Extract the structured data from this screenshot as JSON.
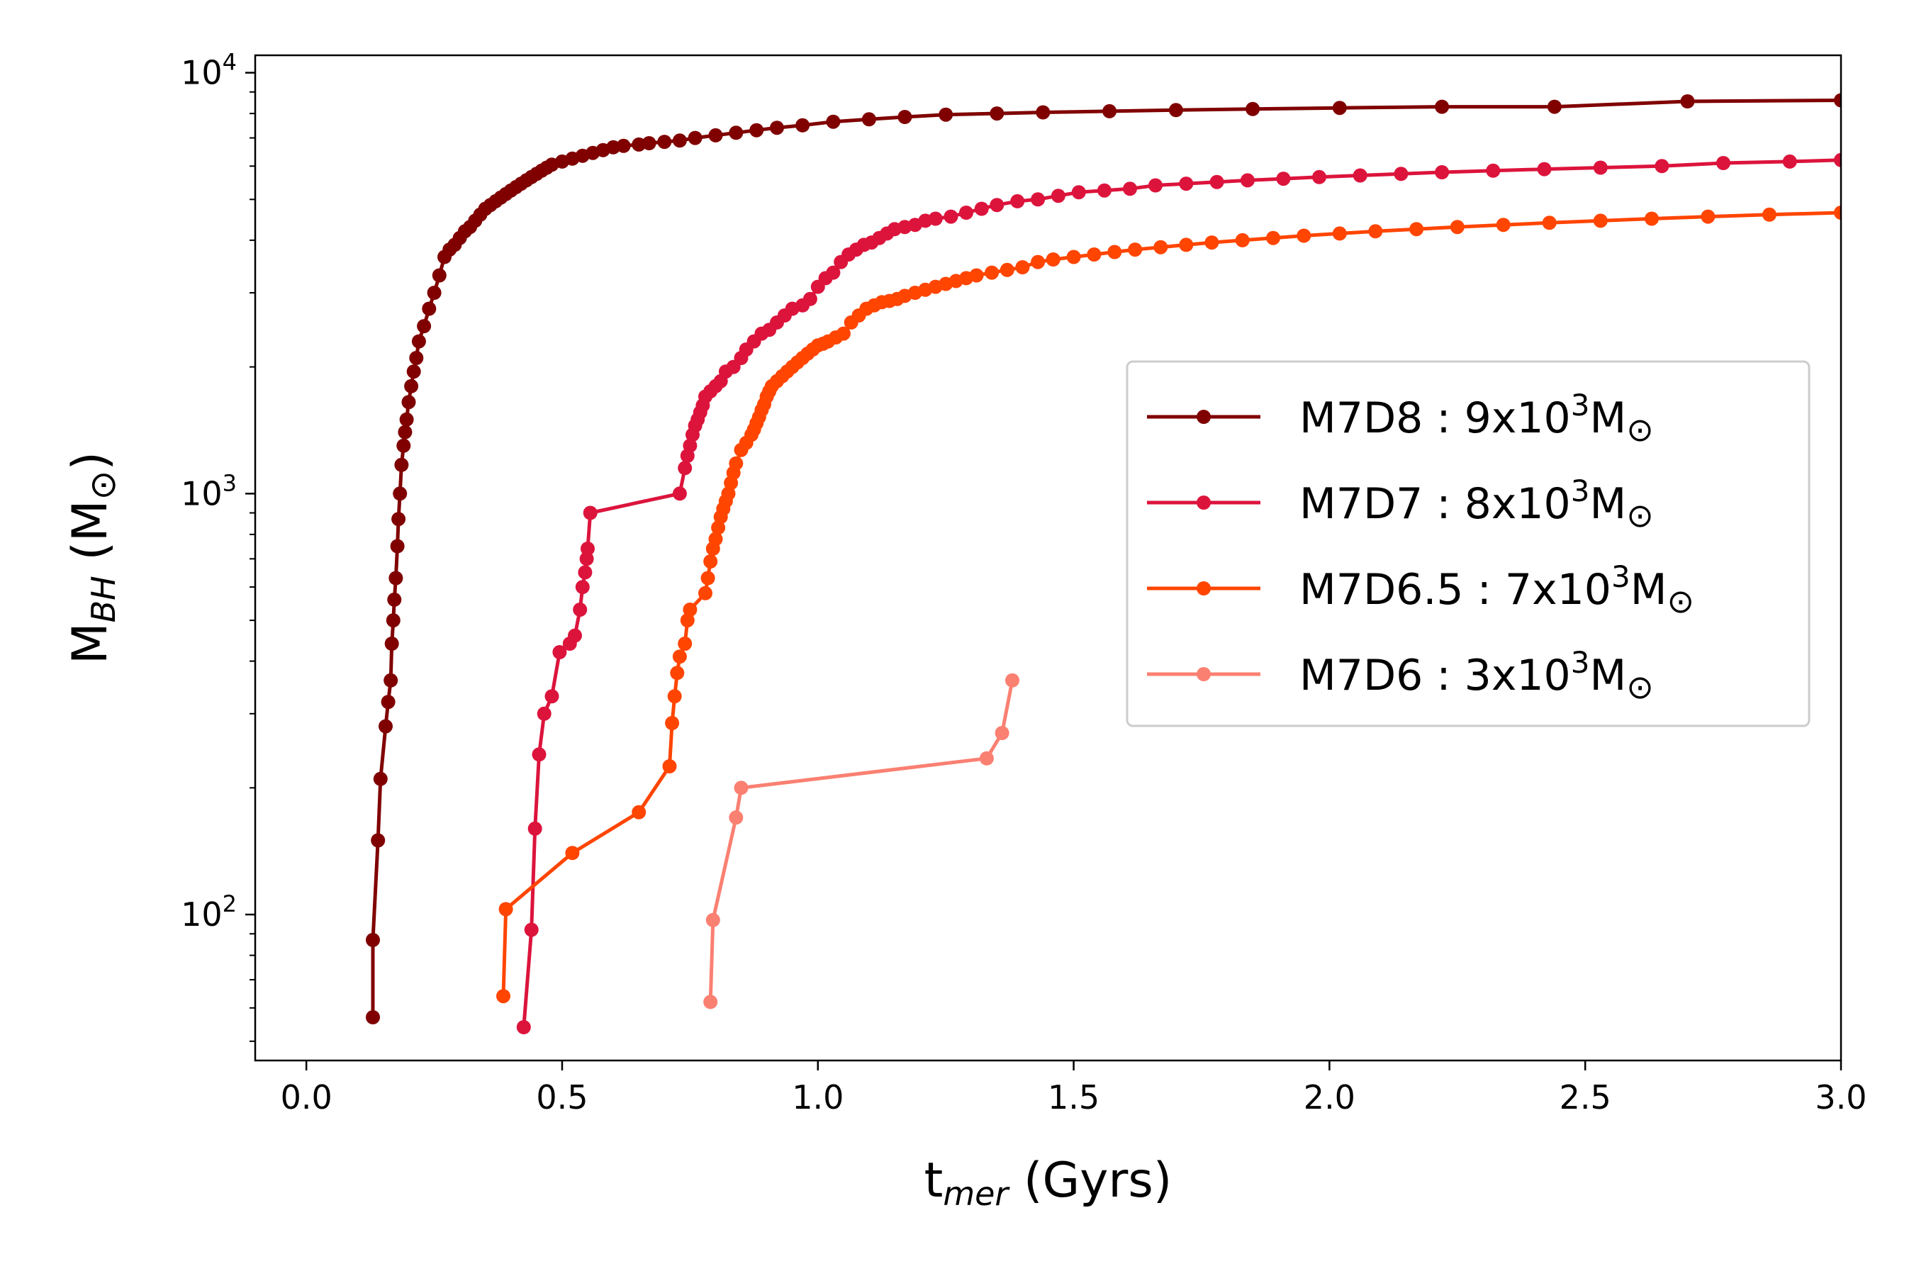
{
  "chart_data": {
    "type": "line",
    "xlabel": {
      "main": "t",
      "sub": "mer",
      "suffix": " (Gyrs)"
    },
    "ylabel": {
      "main": "M",
      "sub": "BH",
      "suffix": " (M",
      "odot": "⊙",
      "close": ")"
    },
    "xlim": [
      -0.1,
      3.0
    ],
    "ylim": [
      45,
      11000
    ],
    "yscale": "log",
    "grid": false,
    "legend_position": "center-right",
    "x_ticks": [
      {
        "value": 0.0,
        "label": "0.0"
      },
      {
        "value": 0.5,
        "label": "0.5"
      },
      {
        "value": 1.0,
        "label": "1.0"
      },
      {
        "value": 1.5,
        "label": "1.5"
      },
      {
        "value": 2.0,
        "label": "2.0"
      },
      {
        "value": 2.5,
        "label": "2.5"
      },
      {
        "value": 3.0,
        "label": "3.0"
      }
    ],
    "y_major_ticks": [
      {
        "value": 100,
        "base": "10",
        "exp": "2"
      },
      {
        "value": 1000,
        "base": "10",
        "exp": "3"
      },
      {
        "value": 10000,
        "base": "10",
        "exp": "4"
      }
    ],
    "series": [
      {
        "name": "M7D8",
        "mass_base": "9x10",
        "mass_exp": "3",
        "mass_unit": "M",
        "odot": "⊙",
        "color": "#800000",
        "x": [
          0.13,
          0.13,
          0.14,
          0.145,
          0.155,
          0.16,
          0.165,
          0.167,
          0.17,
          0.172,
          0.175,
          0.178,
          0.18,
          0.183,
          0.186,
          0.19,
          0.193,
          0.196,
          0.2,
          0.205,
          0.21,
          0.215,
          0.22,
          0.23,
          0.24,
          0.25,
          0.26,
          0.27,
          0.28,
          0.29,
          0.3,
          0.31,
          0.32,
          0.33,
          0.34,
          0.35,
          0.36,
          0.37,
          0.38,
          0.39,
          0.4,
          0.41,
          0.42,
          0.43,
          0.44,
          0.45,
          0.46,
          0.47,
          0.48,
          0.5,
          0.52,
          0.54,
          0.56,
          0.58,
          0.6,
          0.62,
          0.65,
          0.67,
          0.7,
          0.73,
          0.76,
          0.8,
          0.84,
          0.88,
          0.92,
          0.97,
          1.03,
          1.1,
          1.17,
          1.25,
          1.35,
          1.44,
          1.57,
          1.7,
          1.85,
          2.02,
          2.22,
          2.44,
          2.7,
          3.0
        ],
        "y": [
          57,
          87,
          150,
          210,
          280,
          320,
          360,
          440,
          500,
          560,
          630,
          750,
          870,
          1000,
          1170,
          1300,
          1400,
          1500,
          1650,
          1800,
          1950,
          2100,
          2300,
          2500,
          2750,
          3000,
          3300,
          3650,
          3800,
          3900,
          4050,
          4200,
          4300,
          4450,
          4600,
          4750,
          4850,
          4950,
          5050,
          5150,
          5250,
          5350,
          5450,
          5550,
          5650,
          5750,
          5850,
          5950,
          6050,
          6150,
          6250,
          6350,
          6450,
          6550,
          6650,
          6700,
          6750,
          6800,
          6850,
          6900,
          7000,
          7100,
          7200,
          7300,
          7400,
          7500,
          7650,
          7750,
          7850,
          7950,
          8000,
          8050,
          8100,
          8150,
          8200,
          8250,
          8300,
          8300,
          8550,
          8600
        ]
      },
      {
        "name": "M7D7",
        "mass_base": "8x10",
        "mass_exp": "3",
        "mass_unit": "M",
        "odot": "⊙",
        "color": "#dc143c",
        "x": [
          0.425,
          0.44,
          0.447,
          0.455,
          0.465,
          0.48,
          0.495,
          0.515,
          0.525,
          0.535,
          0.54,
          0.545,
          0.548,
          0.55,
          0.555,
          0.73,
          0.74,
          0.745,
          0.75,
          0.755,
          0.76,
          0.765,
          0.77,
          0.775,
          0.78,
          0.79,
          0.8,
          0.81,
          0.82,
          0.835,
          0.85,
          0.86,
          0.875,
          0.89,
          0.905,
          0.92,
          0.935,
          0.95,
          0.97,
          0.985,
          1.0,
          1.015,
          1.03,
          1.045,
          1.06,
          1.075,
          1.09,
          1.105,
          1.12,
          1.135,
          1.15,
          1.17,
          1.19,
          1.21,
          1.23,
          1.26,
          1.29,
          1.32,
          1.35,
          1.39,
          1.43,
          1.47,
          1.51,
          1.56,
          1.61,
          1.66,
          1.72,
          1.78,
          1.84,
          1.91,
          1.98,
          2.06,
          2.14,
          2.22,
          2.32,
          2.42,
          2.53,
          2.65,
          2.77,
          2.9,
          3.0
        ],
        "y": [
          54,
          92,
          160,
          240,
          300,
          330,
          420,
          440,
          460,
          530,
          600,
          650,
          700,
          740,
          900,
          1000,
          1150,
          1230,
          1300,
          1380,
          1450,
          1500,
          1560,
          1620,
          1700,
          1750,
          1800,
          1850,
          1950,
          2000,
          2100,
          2200,
          2300,
          2400,
          2450,
          2550,
          2650,
          2750,
          2800,
          2900,
          3100,
          3250,
          3350,
          3550,
          3700,
          3800,
          3900,
          3950,
          4050,
          4150,
          4250,
          4300,
          4350,
          4450,
          4500,
          4550,
          4650,
          4750,
          4850,
          4950,
          5000,
          5100,
          5200,
          5250,
          5300,
          5400,
          5450,
          5500,
          5550,
          5600,
          5650,
          5700,
          5750,
          5800,
          5850,
          5900,
          5950,
          6000,
          6100,
          6150,
          6200
        ]
      },
      {
        "name": "M7D6.5",
        "mass_base": "7x10",
        "mass_exp": "3",
        "mass_unit": "M",
        "odot": "⊙",
        "color": "#ff4500",
        "x": [
          0.385,
          0.39,
          0.52,
          0.65,
          0.71,
          0.715,
          0.72,
          0.725,
          0.73,
          0.74,
          0.745,
          0.75,
          0.78,
          0.785,
          0.79,
          0.795,
          0.8,
          0.805,
          0.81,
          0.815,
          0.82,
          0.825,
          0.83,
          0.835,
          0.84,
          0.85,
          0.86,
          0.87,
          0.875,
          0.88,
          0.885,
          0.89,
          0.895,
          0.9,
          0.905,
          0.91,
          0.92,
          0.93,
          0.94,
          0.95,
          0.96,
          0.97,
          0.98,
          0.99,
          1.0,
          1.01,
          1.02,
          1.035,
          1.05,
          1.065,
          1.08,
          1.095,
          1.11,
          1.125,
          1.14,
          1.155,
          1.17,
          1.19,
          1.21,
          1.23,
          1.25,
          1.27,
          1.29,
          1.31,
          1.34,
          1.37,
          1.4,
          1.43,
          1.46,
          1.5,
          1.54,
          1.58,
          1.62,
          1.67,
          1.72,
          1.77,
          1.83,
          1.89,
          1.95,
          2.02,
          2.09,
          2.17,
          2.25,
          2.34,
          2.43,
          2.53,
          2.63,
          2.74,
          2.86,
          3.0
        ],
        "y": [
          64,
          103,
          140,
          175,
          225,
          285,
          330,
          375,
          410,
          440,
          500,
          530,
          580,
          630,
          690,
          740,
          780,
          830,
          880,
          920,
          960,
          1000,
          1060,
          1120,
          1180,
          1270,
          1320,
          1380,
          1420,
          1470,
          1520,
          1580,
          1630,
          1700,
          1750,
          1800,
          1850,
          1900,
          1950,
          2000,
          2050,
          2100,
          2150,
          2200,
          2250,
          2270,
          2300,
          2350,
          2400,
          2550,
          2650,
          2750,
          2800,
          2850,
          2870,
          2900,
          2950,
          3000,
          3050,
          3100,
          3150,
          3200,
          3250,
          3300,
          3350,
          3400,
          3450,
          3550,
          3600,
          3650,
          3700,
          3750,
          3800,
          3850,
          3900,
          3950,
          4000,
          4050,
          4100,
          4150,
          4200,
          4250,
          4300,
          4350,
          4400,
          4450,
          4500,
          4550,
          4600,
          4650
        ]
      },
      {
        "name": "M7D6",
        "mass_base": "3x10",
        "mass_exp": "3",
        "mass_unit": "M",
        "odot": "⊙",
        "color": "#fa8072",
        "x": [
          0.79,
          0.795,
          0.84,
          0.85,
          1.33,
          1.36,
          1.38
        ],
        "y": [
          62,
          97,
          170,
          200,
          235,
          270,
          360
        ]
      }
    ]
  }
}
